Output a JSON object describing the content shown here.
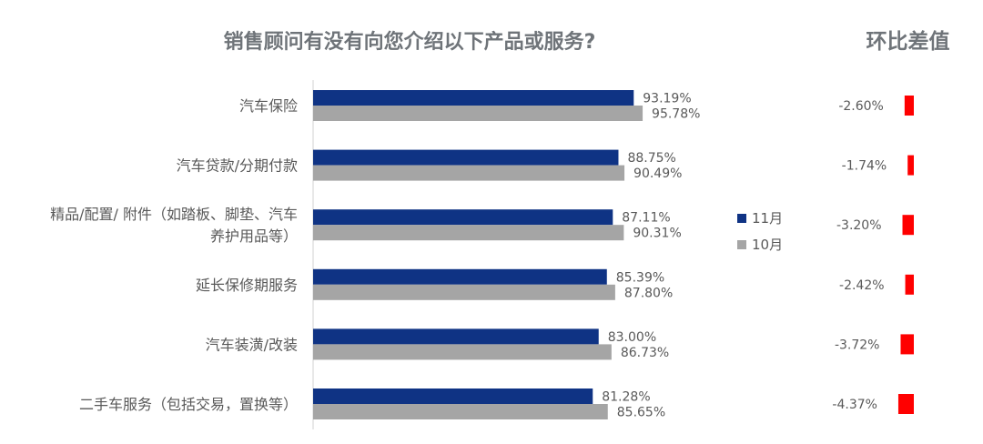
{
  "chart_data": {
    "type": "bar",
    "orientation": "horizontal",
    "title": "销售顾问有没有向您介绍以下产品或服务?",
    "categories": [
      "汽车保险",
      "汽车贷款/分期付款",
      "精品/配置/ 附件（如踏板、脚垫、汽车养护用品等）",
      "延长保修期服务",
      "汽车装潢/改装",
      "二手车服务（包括交易，置换等）"
    ],
    "category_lines": [
      [
        "汽车保险"
      ],
      [
        "汽车贷款/分期付款"
      ],
      [
        "精品/配置/ 附件（如踏板、脚垫、汽车",
        "养护用品等）"
      ],
      [
        "延长保修期服务"
      ],
      [
        "汽车装潢/改装"
      ],
      [
        "二手车服务（包括交易，置换等）"
      ]
    ],
    "series": [
      {
        "name": "11月",
        "color": "#0f3384",
        "values": [
          93.19,
          88.75,
          87.11,
          85.39,
          83.0,
          81.28
        ],
        "labels": [
          "93.19%",
          "88.75%",
          "87.11%",
          "85.39%",
          "83.00%",
          "81.28%"
        ]
      },
      {
        "name": "10月",
        "color": "#a5a5a5",
        "values": [
          95.78,
          90.49,
          90.31,
          87.8,
          86.73,
          85.65
        ],
        "labels": [
          "95.78%",
          "90.49%",
          "90.31%",
          "87.80%",
          "86.73%",
          "85.65%"
        ]
      }
    ],
    "xlim": [
      0,
      100
    ],
    "legend_position": "right",
    "diff": {
      "title": "环比差值",
      "color": "#ff0000",
      "values": [
        -2.6,
        -1.74,
        -3.2,
        -2.42,
        -3.72,
        -4.37
      ],
      "labels": [
        "-2.60%",
        "-1.74%",
        "-3.20%",
        "-2.42%",
        "-3.72%",
        "-4.37%"
      ]
    }
  }
}
